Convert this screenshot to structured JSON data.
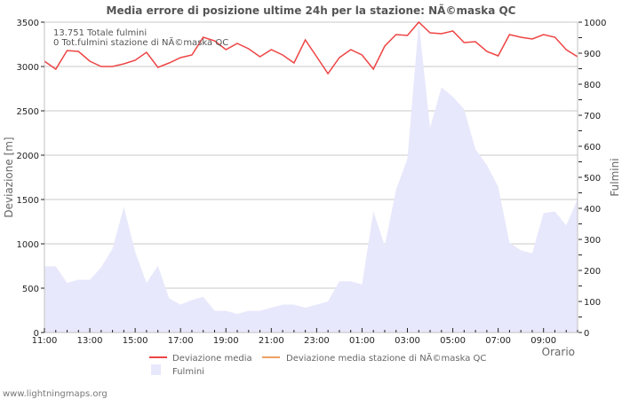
{
  "chart_data": {
    "type": "line",
    "title": "Media errore di posizione ultime 24h per la stazione: NÃ©maska QC",
    "xlabel": "Orario",
    "ylabel": "Deviazione  [m]",
    "y2label": "Fulmini",
    "ylim": [
      0,
      3500
    ],
    "y2lim": [
      0,
      1000
    ],
    "grid": true,
    "legend_position": "bottom",
    "y_ticks": [
      "0",
      "500",
      "1000",
      "1500",
      "2000",
      "2500",
      "3000",
      "3500"
    ],
    "y2_ticks": [
      "0",
      "100",
      "200",
      "300",
      "400",
      "500",
      "600",
      "700",
      "800",
      "900",
      "1000"
    ],
    "x_tick_labels": [
      "11:00",
      "13:00",
      "15:00",
      "17:00",
      "19:00",
      "21:00",
      "23:00",
      "01:00",
      "03:00",
      "05:00",
      "07:00",
      "09:00"
    ],
    "x": [
      "11:00",
      "11:30",
      "12:00",
      "12:30",
      "13:00",
      "13:30",
      "14:00",
      "14:30",
      "15:00",
      "15:30",
      "16:00",
      "16:30",
      "17:00",
      "17:30",
      "18:00",
      "18:30",
      "19:00",
      "19:30",
      "20:00",
      "20:30",
      "21:00",
      "21:30",
      "22:00",
      "22:30",
      "23:00",
      "23:30",
      "00:00",
      "00:30",
      "01:00",
      "01:30",
      "02:00",
      "02:30",
      "03:00",
      "03:30",
      "04:00",
      "04:30",
      "05:00",
      "05:30",
      "06:00",
      "06:30",
      "07:00",
      "07:30",
      "08:00",
      "08:30",
      "09:00",
      "09:30",
      "10:00",
      "10:30"
    ],
    "series": [
      {
        "name": "Deviazione media",
        "axis": "left",
        "color": "#ee4444",
        "type": "line",
        "values": [
          3060,
          2970,
          3180,
          3170,
          3060,
          3000,
          3000,
          3030,
          3070,
          3160,
          2990,
          3040,
          3100,
          3130,
          3330,
          3290,
          3190,
          3260,
          3200,
          3110,
          3190,
          3130,
          3040,
          3300,
          3110,
          2920,
          3100,
          3190,
          3130,
          2970,
          3230,
          3360,
          3350,
          3500,
          3380,
          3370,
          3400,
          3270,
          3280,
          3170,
          3120,
          3360,
          3330,
          3310,
          3360,
          3330,
          3190,
          3110
        ]
      },
      {
        "name": "Deviazione media stazione di NÃ©maska QC",
        "axis": "left",
        "color": "#f0a060",
        "type": "line",
        "values": []
      },
      {
        "name": "Fulmini",
        "axis": "right",
        "color": "#e8e8fc",
        "type": "area",
        "values": [
          213,
          213,
          160,
          170,
          170,
          210,
          270,
          405,
          260,
          160,
          215,
          110,
          90,
          105,
          115,
          70,
          70,
          60,
          70,
          70,
          80,
          90,
          90,
          80,
          90,
          100,
          165,
          165,
          155,
          390,
          280,
          460,
          560,
          1000,
          660,
          790,
          760,
          720,
          590,
          540,
          470,
          290,
          265,
          255,
          385,
          390,
          345,
          430
        ]
      }
    ],
    "annotations": [
      "13.751 Totale fulmini",
      "0 Tot.fulmini stazione di NÃ©maska QC"
    ]
  },
  "header": {
    "title": "Media errore di posizione ultime 24h per la stazione: NÃ©maska QC"
  },
  "annotations": {
    "total_strikes": "13.751 Totale fulmini",
    "station_strikes": "0 Tot.fulmini stazione di NÃ©maska QC"
  },
  "axes": {
    "y_label": "Deviazione  [m]",
    "y2_label": "Fulmini",
    "x_label": "Orario"
  },
  "legend": {
    "item1": "Deviazione media",
    "item2": "Deviazione media stazione di NÃ©maska QC",
    "item3": "Fulmini"
  },
  "footer": {
    "site": "www.lightningmaps.org"
  },
  "colors": {
    "line_main": "#ee4444",
    "line_station": "#f0a060",
    "area": "#e8e8fc",
    "grid": "#c8c8c8"
  }
}
